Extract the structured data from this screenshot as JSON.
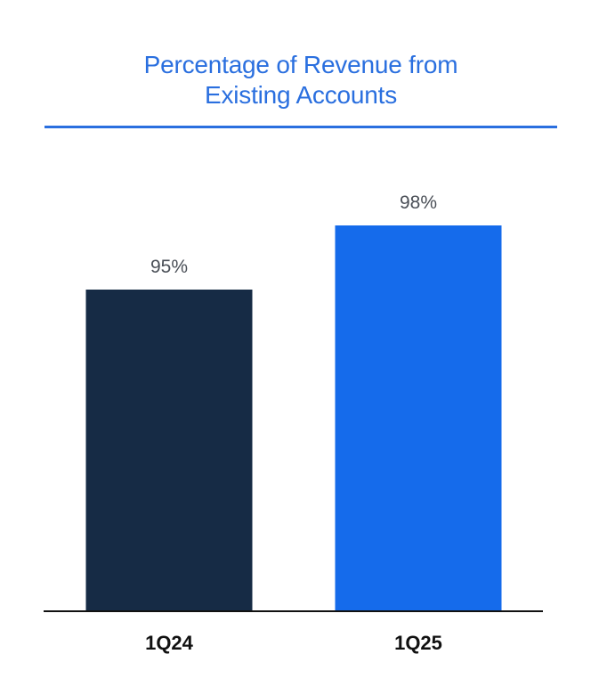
{
  "chart_data": {
    "type": "bar",
    "title_lines": [
      "Percentage of Revenue from",
      "Existing Accounts"
    ],
    "categories": [
      "1Q24",
      "1Q25"
    ],
    "values": [
      95,
      98
    ],
    "value_labels": [
      "95%",
      "98%"
    ],
    "bar_colors": [
      "#162b45",
      "#156beb"
    ],
    "ylim": [
      88,
      100
    ],
    "xlabel": "",
    "ylabel": "",
    "grid": false,
    "legend": "none"
  },
  "colors": {
    "title": "#2a6fdf",
    "rule": "#2a6fdf",
    "axis": "#111111"
  }
}
